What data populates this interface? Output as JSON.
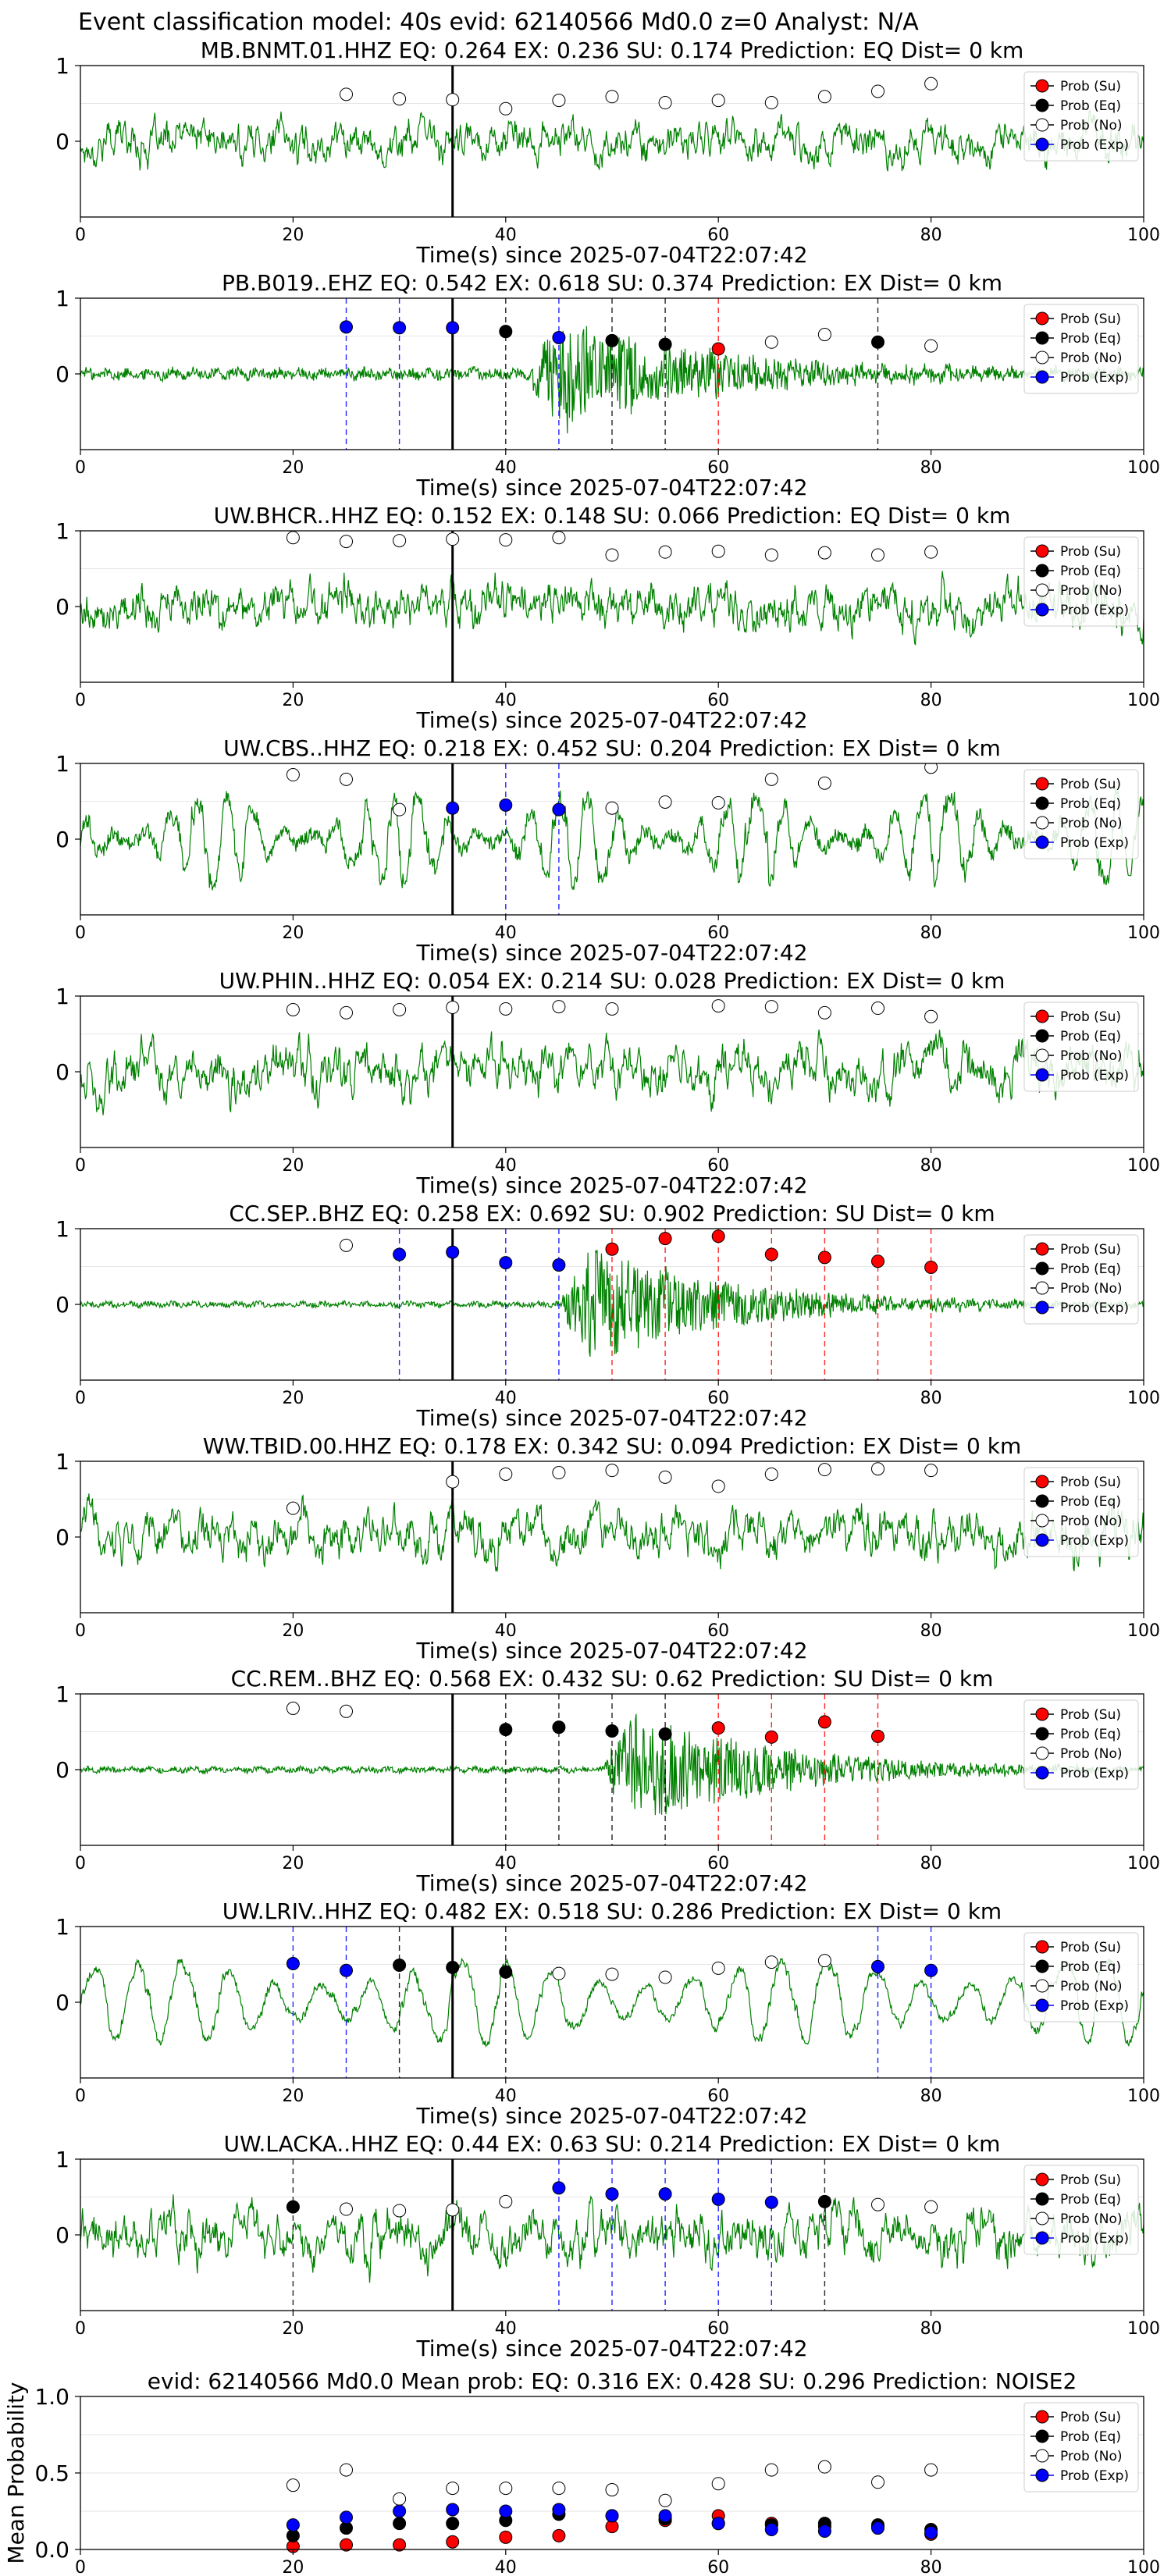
{
  "header": "Event classification model: 40s evid: 62140566 Md0.0 z=0 Analyst: N/A",
  "legend_labels": [
    "Prob (Su)",
    "Prob (Eq)",
    "Prob (No)",
    "Prob (Exp)"
  ],
  "colors": {
    "su": "#ff0000",
    "eq": "#000000",
    "no": "#ffffff",
    "exp": "#0000ff",
    "waveform": "#008000"
  },
  "chart_data": [
    {
      "type": "line",
      "title": "MB.BNMT.01.HHZ   EQ: 0.264  EX: 0.236  SU: 0.174   Prediction: EQ    Dist= 0 km",
      "xlabel": "Time(s) since 2025-07-04T22:07:42",
      "xlim": [
        0,
        100
      ],
      "ylim": [
        -1,
        1
      ],
      "x_ticks": [
        "0",
        "20",
        "40",
        "60",
        "80",
        "100"
      ],
      "y_ticks": [
        "0",
        "1"
      ],
      "waveform": {
        "amplitude": 0.28,
        "style": "broadband",
        "event_onset": null
      },
      "pick_time": 35,
      "points": [
        {
          "t": 25,
          "p": 0.62,
          "cls": "no"
        },
        {
          "t": 30,
          "p": 0.56,
          "cls": "no"
        },
        {
          "t": 35,
          "p": 0.55,
          "cls": "no"
        },
        {
          "t": 40,
          "p": 0.43,
          "cls": "no"
        },
        {
          "t": 45,
          "p": 0.54,
          "cls": "no"
        },
        {
          "t": 50,
          "p": 0.59,
          "cls": "no"
        },
        {
          "t": 55,
          "p": 0.51,
          "cls": "no"
        },
        {
          "t": 60,
          "p": 0.54,
          "cls": "no"
        },
        {
          "t": 65,
          "p": 0.51,
          "cls": "no"
        },
        {
          "t": 70,
          "p": 0.59,
          "cls": "no"
        },
        {
          "t": 75,
          "p": 0.66,
          "cls": "no"
        },
        {
          "t": 80,
          "p": 0.76,
          "cls": "no"
        }
      ]
    },
    {
      "type": "line",
      "title": "PB.B019..EHZ   EQ: 0.542  EX: 0.618  SU: 0.374   Prediction: EX    Dist= 0 km",
      "xlabel": "Time(s) since 2025-07-04T22:07:42",
      "xlim": [
        0,
        100
      ],
      "ylim": [
        -1,
        1
      ],
      "x_ticks": [
        "0",
        "20",
        "40",
        "60",
        "80",
        "100"
      ],
      "y_ticks": [
        "0",
        "1"
      ],
      "waveform": {
        "amplitude": 0.1,
        "style": "quiet",
        "event_onset": 42
      },
      "pick_time": 35,
      "points": [
        {
          "t": 25,
          "p": 0.62,
          "cls": "exp"
        },
        {
          "t": 30,
          "p": 0.61,
          "cls": "exp"
        },
        {
          "t": 35,
          "p": 0.61,
          "cls": "exp"
        },
        {
          "t": 40,
          "p": 0.56,
          "cls": "eq"
        },
        {
          "t": 45,
          "p": 0.48,
          "cls": "exp"
        },
        {
          "t": 50,
          "p": 0.44,
          "cls": "eq"
        },
        {
          "t": 55,
          "p": 0.39,
          "cls": "eq"
        },
        {
          "t": 60,
          "p": 0.33,
          "cls": "su"
        },
        {
          "t": 65,
          "p": 0.42,
          "cls": "no"
        },
        {
          "t": 70,
          "p": 0.52,
          "cls": "no"
        },
        {
          "t": 75,
          "p": 0.42,
          "cls": "eq"
        },
        {
          "t": 80,
          "p": 0.37,
          "cls": "no"
        }
      ]
    },
    {
      "type": "line",
      "title": "UW.BHCR..HHZ   EQ: 0.152  EX: 0.148  SU: 0.066   Prediction: EQ    Dist= 0 km",
      "xlabel": "Time(s) since 2025-07-04T22:07:42",
      "xlim": [
        0,
        100
      ],
      "ylim": [
        -1,
        1
      ],
      "x_ticks": [
        "0",
        "20",
        "40",
        "60",
        "80",
        "100"
      ],
      "y_ticks": [
        "0",
        "1"
      ],
      "waveform": {
        "amplitude": 0.32,
        "style": "broadband",
        "event_onset": null
      },
      "pick_time": 35,
      "points": [
        {
          "t": 20,
          "p": 0.91,
          "cls": "no"
        },
        {
          "t": 25,
          "p": 0.86,
          "cls": "no"
        },
        {
          "t": 30,
          "p": 0.87,
          "cls": "no"
        },
        {
          "t": 35,
          "p": 0.89,
          "cls": "no"
        },
        {
          "t": 40,
          "p": 0.88,
          "cls": "no"
        },
        {
          "t": 45,
          "p": 0.91,
          "cls": "no"
        },
        {
          "t": 50,
          "p": 0.68,
          "cls": "no"
        },
        {
          "t": 55,
          "p": 0.72,
          "cls": "no"
        },
        {
          "t": 60,
          "p": 0.73,
          "cls": "no"
        },
        {
          "t": 65,
          "p": 0.68,
          "cls": "no"
        },
        {
          "t": 70,
          "p": 0.71,
          "cls": "no"
        },
        {
          "t": 75,
          "p": 0.68,
          "cls": "no"
        },
        {
          "t": 80,
          "p": 0.72,
          "cls": "no"
        }
      ]
    },
    {
      "type": "line",
      "title": "UW.CBS..HHZ   EQ: 0.218  EX: 0.452  SU: 0.204   Prediction: EX    Dist= 0 km",
      "xlabel": "Time(s) since 2025-07-04T22:07:42",
      "xlim": [
        0,
        100
      ],
      "ylim": [
        -1,
        1
      ],
      "x_ticks": [
        "0",
        "20",
        "40",
        "60",
        "80",
        "100"
      ],
      "y_ticks": [
        "0",
        "1"
      ],
      "waveform": {
        "amplitude": 0.6,
        "style": "oscillatory",
        "event_onset": null
      },
      "pick_time": 35,
      "points": [
        {
          "t": 20,
          "p": 0.85,
          "cls": "no"
        },
        {
          "t": 25,
          "p": 0.79,
          "cls": "no"
        },
        {
          "t": 30,
          "p": 0.39,
          "cls": "no"
        },
        {
          "t": 35,
          "p": 0.41,
          "cls": "exp"
        },
        {
          "t": 40,
          "p": 0.45,
          "cls": "exp"
        },
        {
          "t": 45,
          "p": 0.39,
          "cls": "exp"
        },
        {
          "t": 50,
          "p": 0.41,
          "cls": "no"
        },
        {
          "t": 55,
          "p": 0.49,
          "cls": "no"
        },
        {
          "t": 60,
          "p": 0.48,
          "cls": "no"
        },
        {
          "t": 65,
          "p": 0.79,
          "cls": "no"
        },
        {
          "t": 70,
          "p": 0.74,
          "cls": "no"
        },
        {
          "t": 80,
          "p": 0.95,
          "cls": "no"
        }
      ]
    },
    {
      "type": "line",
      "title": "UW.PHIN..HHZ   EQ: 0.054  EX: 0.214  SU: 0.028   Prediction: EX    Dist= 0 km",
      "xlabel": "Time(s) since 2025-07-04T22:07:42",
      "xlim": [
        0,
        100
      ],
      "ylim": [
        -1,
        1
      ],
      "x_ticks": [
        "0",
        "20",
        "40",
        "60",
        "80",
        "100"
      ],
      "y_ticks": [
        "0",
        "1"
      ],
      "waveform": {
        "amplitude": 0.35,
        "style": "broadband",
        "event_onset": null
      },
      "pick_time": 35,
      "points": [
        {
          "t": 20,
          "p": 0.82,
          "cls": "no"
        },
        {
          "t": 25,
          "p": 0.78,
          "cls": "no"
        },
        {
          "t": 30,
          "p": 0.82,
          "cls": "no"
        },
        {
          "t": 35,
          "p": 0.85,
          "cls": "no"
        },
        {
          "t": 40,
          "p": 0.83,
          "cls": "no"
        },
        {
          "t": 45,
          "p": 0.86,
          "cls": "no"
        },
        {
          "t": 50,
          "p": 0.83,
          "cls": "no"
        },
        {
          "t": 60,
          "p": 0.87,
          "cls": "no"
        },
        {
          "t": 65,
          "p": 0.86,
          "cls": "no"
        },
        {
          "t": 70,
          "p": 0.78,
          "cls": "no"
        },
        {
          "t": 75,
          "p": 0.84,
          "cls": "no"
        },
        {
          "t": 80,
          "p": 0.73,
          "cls": "no"
        }
      ]
    },
    {
      "type": "line",
      "title": "CC.SEP..BHZ   EQ: 0.258  EX: 0.692  SU: 0.902   Prediction: SU    Dist= 0 km",
      "xlabel": "Time(s) since 2025-07-04T22:07:42",
      "xlim": [
        0,
        100
      ],
      "ylim": [
        -1,
        1
      ],
      "x_ticks": [
        "0",
        "20",
        "40",
        "60",
        "80",
        "100"
      ],
      "y_ticks": [
        "0",
        "1"
      ],
      "waveform": {
        "amplitude": 0.05,
        "style": "quiet",
        "event_onset": 45
      },
      "pick_time": 35,
      "points": [
        {
          "t": 25,
          "p": 0.78,
          "cls": "no"
        },
        {
          "t": 30,
          "p": 0.66,
          "cls": "exp"
        },
        {
          "t": 35,
          "p": 0.69,
          "cls": "exp"
        },
        {
          "t": 40,
          "p": 0.55,
          "cls": "exp"
        },
        {
          "t": 45,
          "p": 0.52,
          "cls": "exp"
        },
        {
          "t": 50,
          "p": 0.73,
          "cls": "su"
        },
        {
          "t": 55,
          "p": 0.87,
          "cls": "su"
        },
        {
          "t": 60,
          "p": 0.9,
          "cls": "su"
        },
        {
          "t": 65,
          "p": 0.66,
          "cls": "su"
        },
        {
          "t": 70,
          "p": 0.62,
          "cls": "su"
        },
        {
          "t": 75,
          "p": 0.57,
          "cls": "su"
        },
        {
          "t": 80,
          "p": 0.49,
          "cls": "su"
        }
      ]
    },
    {
      "type": "line",
      "title": "WW.TBID.00.HHZ   EQ: 0.178  EX: 0.342  SU: 0.094   Prediction: EX    Dist= 0 km",
      "xlabel": "Time(s) since 2025-07-04T22:07:42",
      "xlim": [
        0,
        100
      ],
      "ylim": [
        -1,
        1
      ],
      "x_ticks": [
        "0",
        "20",
        "40",
        "60",
        "80",
        "100"
      ],
      "y_ticks": [
        "0",
        "1"
      ],
      "waveform": {
        "amplitude": 0.33,
        "style": "broadband",
        "event_onset": null
      },
      "pick_time": 35,
      "points": [
        {
          "t": 20,
          "p": 0.38,
          "cls": "no"
        },
        {
          "t": 35,
          "p": 0.73,
          "cls": "no"
        },
        {
          "t": 40,
          "p": 0.83,
          "cls": "no"
        },
        {
          "t": 45,
          "p": 0.85,
          "cls": "no"
        },
        {
          "t": 50,
          "p": 0.88,
          "cls": "no"
        },
        {
          "t": 55,
          "p": 0.79,
          "cls": "no"
        },
        {
          "t": 60,
          "p": 0.67,
          "cls": "no"
        },
        {
          "t": 65,
          "p": 0.83,
          "cls": "no"
        },
        {
          "t": 70,
          "p": 0.89,
          "cls": "no"
        },
        {
          "t": 75,
          "p": 0.9,
          "cls": "no"
        },
        {
          "t": 80,
          "p": 0.88,
          "cls": "no"
        }
      ]
    },
    {
      "type": "line",
      "title": "CC.REM..BHZ   EQ: 0.568  EX: 0.432  SU: 0.62   Prediction: SU    Dist= 0 km",
      "xlabel": "Time(s) since 2025-07-04T22:07:42",
      "xlim": [
        0,
        100
      ],
      "ylim": [
        -1,
        1
      ],
      "x_ticks": [
        "0",
        "20",
        "40",
        "60",
        "80",
        "100"
      ],
      "y_ticks": [
        "0",
        "1"
      ],
      "waveform": {
        "amplitude": 0.05,
        "style": "quiet",
        "event_onset": 49
      },
      "pick_time": 35,
      "points": [
        {
          "t": 20,
          "p": 0.81,
          "cls": "no"
        },
        {
          "t": 25,
          "p": 0.77,
          "cls": "no"
        },
        {
          "t": 40,
          "p": 0.53,
          "cls": "eq"
        },
        {
          "t": 45,
          "p": 0.56,
          "cls": "eq"
        },
        {
          "t": 50,
          "p": 0.51,
          "cls": "eq"
        },
        {
          "t": 55,
          "p": 0.47,
          "cls": "eq"
        },
        {
          "t": 60,
          "p": 0.55,
          "cls": "su"
        },
        {
          "t": 65,
          "p": 0.43,
          "cls": "su"
        },
        {
          "t": 70,
          "p": 0.63,
          "cls": "su"
        },
        {
          "t": 75,
          "p": 0.44,
          "cls": "su"
        }
      ]
    },
    {
      "type": "line",
      "title": "UW.LRIV..HHZ   EQ: 0.482  EX: 0.518  SU: 0.286   Prediction: EX    Dist= 0 km",
      "xlabel": "Time(s) since 2025-07-04T22:07:42",
      "xlim": [
        0,
        100
      ],
      "ylim": [
        -1,
        1
      ],
      "x_ticks": [
        "0",
        "20",
        "40",
        "60",
        "80",
        "100"
      ],
      "y_ticks": [
        "0",
        "1"
      ],
      "waveform": {
        "amplitude": 0.55,
        "style": "lowfreq",
        "event_onset": null
      },
      "pick_time": 35,
      "points": [
        {
          "t": 20,
          "p": 0.51,
          "cls": "exp"
        },
        {
          "t": 25,
          "p": 0.42,
          "cls": "exp"
        },
        {
          "t": 30,
          "p": 0.49,
          "cls": "eq"
        },
        {
          "t": 35,
          "p": 0.46,
          "cls": "eq"
        },
        {
          "t": 40,
          "p": 0.4,
          "cls": "eq"
        },
        {
          "t": 45,
          "p": 0.38,
          "cls": "no"
        },
        {
          "t": 50,
          "p": 0.37,
          "cls": "no"
        },
        {
          "t": 55,
          "p": 0.33,
          "cls": "no"
        },
        {
          "t": 60,
          "p": 0.45,
          "cls": "no"
        },
        {
          "t": 65,
          "p": 0.53,
          "cls": "no"
        },
        {
          "t": 70,
          "p": 0.55,
          "cls": "no"
        },
        {
          "t": 75,
          "p": 0.47,
          "cls": "exp"
        },
        {
          "t": 80,
          "p": 0.42,
          "cls": "exp"
        }
      ]
    },
    {
      "type": "line",
      "title": "UW.LACKA..HHZ   EQ: 0.44  EX: 0.63  SU: 0.214   Prediction: EX    Dist= 0 km",
      "xlabel": "Time(s) since 2025-07-04T22:07:42",
      "xlim": [
        0,
        100
      ],
      "ylim": [
        -1,
        1
      ],
      "x_ticks": [
        "0",
        "20",
        "40",
        "60",
        "80",
        "100"
      ],
      "y_ticks": [
        "0",
        "1"
      ],
      "waveform": {
        "amplitude": 0.35,
        "style": "broadband",
        "event_onset": null
      },
      "pick_time": 35,
      "points": [
        {
          "t": 20,
          "p": 0.37,
          "cls": "eq"
        },
        {
          "t": 25,
          "p": 0.34,
          "cls": "no"
        },
        {
          "t": 30,
          "p": 0.32,
          "cls": "no"
        },
        {
          "t": 35,
          "p": 0.33,
          "cls": "no"
        },
        {
          "t": 40,
          "p": 0.44,
          "cls": "no"
        },
        {
          "t": 45,
          "p": 0.62,
          "cls": "exp"
        },
        {
          "t": 50,
          "p": 0.54,
          "cls": "exp"
        },
        {
          "t": 55,
          "p": 0.54,
          "cls": "exp"
        },
        {
          "t": 60,
          "p": 0.47,
          "cls": "exp"
        },
        {
          "t": 65,
          "p": 0.43,
          "cls": "exp"
        },
        {
          "t": 70,
          "p": 0.44,
          "cls": "eq"
        },
        {
          "t": 75,
          "p": 0.4,
          "cls": "no"
        },
        {
          "t": 80,
          "p": 0.37,
          "cls": "no"
        }
      ]
    },
    {
      "type": "scatter",
      "title": "evid: 62140566  Md0.0   Mean prob:   EQ: 0.316  EX: 0.428  SU: 0.296   Prediction: NOISE2",
      "ylabel": "Mean Probability",
      "xlim": [
        0,
        100
      ],
      "ylim": [
        0,
        1
      ],
      "x_ticks": [
        "0",
        "20",
        "40",
        "60",
        "80",
        "100"
      ],
      "y_ticks": [
        "0.0",
        "0.5",
        "1.0"
      ],
      "x": [
        20,
        25,
        30,
        35,
        40,
        45,
        50,
        55,
        60,
        65,
        70,
        75,
        80
      ],
      "series": [
        {
          "name": "Prob (Su)",
          "cls": "su",
          "values": [
            0.02,
            0.03,
            0.03,
            0.05,
            0.08,
            0.09,
            0.15,
            0.19,
            0.22,
            0.17,
            0.15,
            0.15,
            0.1
          ]
        },
        {
          "name": "Prob (Eq)",
          "cls": "eq",
          "values": [
            0.09,
            0.14,
            0.17,
            0.17,
            0.19,
            0.23,
            0.22,
            0.2,
            0.17,
            0.16,
            0.17,
            0.16,
            0.13
          ]
        },
        {
          "name": "Prob (No)",
          "cls": "no",
          "values": [
            0.42,
            0.52,
            0.33,
            0.4,
            0.4,
            0.4,
            0.39,
            0.32,
            0.43,
            0.52,
            0.54,
            0.44,
            0.52
          ]
        },
        {
          "name": "Prob (Exp)",
          "cls": "exp",
          "values": [
            0.16,
            0.21,
            0.25,
            0.26,
            0.25,
            0.26,
            0.22,
            0.22,
            0.17,
            0.13,
            0.12,
            0.14,
            0.11
          ]
        }
      ]
    }
  ]
}
